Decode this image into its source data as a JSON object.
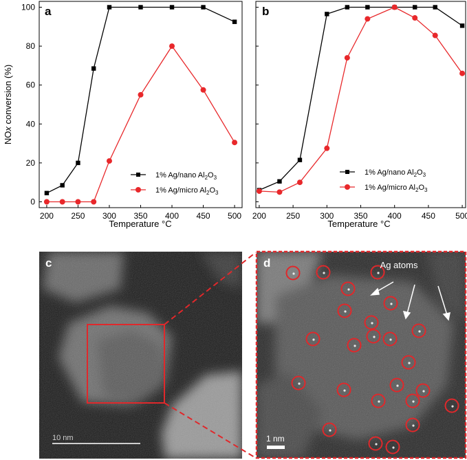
{
  "colors": {
    "black_series": "#000000",
    "red_series": "#e8282b",
    "highlight": "#e0282b"
  },
  "chart_data": [
    {
      "panel": "a",
      "type": "line",
      "xlabel": "Temperature °C",
      "ylabel_parts": [
        "NO",
        "x",
        " conversion (%)"
      ],
      "xlim": [
        188,
        512
      ],
      "ylim": [
        -3,
        103
      ],
      "xticks": [
        200,
        250,
        300,
        350,
        400,
        450,
        500
      ],
      "yticks": [
        0,
        20,
        40,
        60,
        80,
        100
      ],
      "legend_position": "lower-right",
      "series": [
        {
          "name_parts": [
            "1% Ag/nano Al",
            "2",
            "O",
            "3"
          ],
          "color": "#000000",
          "marker": "square",
          "x": [
            200,
            225,
            250,
            275,
            300,
            350,
            400,
            450,
            500
          ],
          "y": [
            4.5,
            8.5,
            20,
            68.5,
            100,
            100,
            100,
            100,
            92.5
          ]
        },
        {
          "name_parts": [
            "1% Ag/micro Al",
            "2",
            "O",
            "3"
          ],
          "color": "#e8282b",
          "marker": "circle",
          "x": [
            200,
            225,
            250,
            275,
            300,
            350,
            400,
            450,
            500
          ],
          "y": [
            0,
            0,
            0,
            0,
            21,
            55,
            80,
            57.5,
            30.5
          ]
        }
      ]
    },
    {
      "panel": "b",
      "type": "line",
      "xlabel": "Temperature °C",
      "xlim": [
        195,
        505
      ],
      "ylim": [
        -3,
        103
      ],
      "xticks": [
        200,
        250,
        300,
        350,
        400,
        450,
        500
      ],
      "yticks": [
        0,
        20,
        40,
        60,
        80,
        100
      ],
      "legend_position": "lower-right",
      "series": [
        {
          "name_parts": [
            "1% Ag/nano Al",
            "2",
            "O",
            "3"
          ],
          "color": "#000000",
          "marker": "square",
          "x": [
            200,
            230,
            260,
            300,
            330,
            360,
            400,
            430,
            460,
            500
          ],
          "y": [
            6,
            10.5,
            21.5,
            96.5,
            100,
            100,
            100,
            100,
            100,
            90.5
          ]
        },
        {
          "name_parts": [
            "1% Ag/micro Al",
            "2",
            "O",
            "3"
          ],
          "color": "#e8282b",
          "marker": "circle",
          "x": [
            200,
            230,
            260,
            300,
            330,
            360,
            400,
            430,
            460,
            500
          ],
          "y": [
            5.5,
            5,
            10,
            27.5,
            74,
            94,
            100,
            94.5,
            85.5,
            66
          ]
        }
      ]
    }
  ],
  "micrographs": {
    "c": {
      "label": "c",
      "scalebar_label": "10 nm"
    },
    "d": {
      "label": "d",
      "scalebar_label": "1 nm",
      "annotation": "Ag atoms",
      "circle_count": 24
    }
  }
}
